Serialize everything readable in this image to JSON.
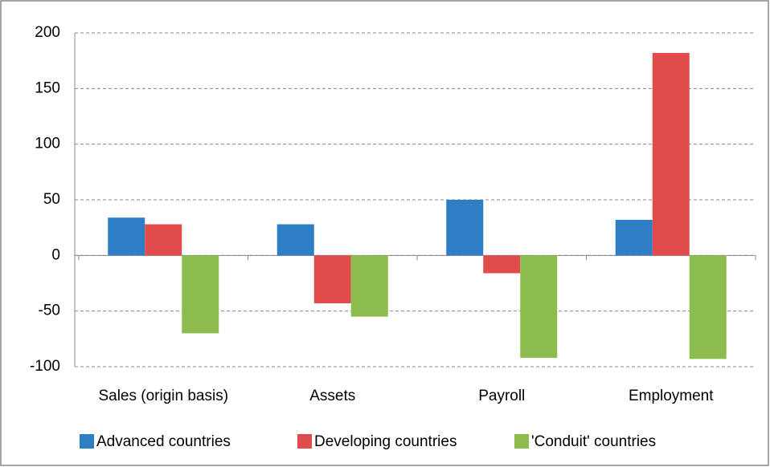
{
  "chart_data": {
    "type": "bar",
    "categories": [
      "Sales (origin basis)",
      "Assets",
      "Payroll",
      "Employment"
    ],
    "series": [
      {
        "name": "Advanced countries",
        "color": "#2e7ec6",
        "values": [
          34,
          28,
          50,
          32
        ]
      },
      {
        "name": "Developing countries",
        "color": "#e04b4b",
        "values": [
          28,
          -43,
          -16,
          182
        ]
      },
      {
        "name": "'Conduit' countries",
        "color": "#8cbb4e",
        "values": [
          -70,
          -55,
          -92,
          -93
        ]
      }
    ],
    "ylim": [
      -100,
      200
    ],
    "yticks": [
      -100,
      -50,
      0,
      50,
      100,
      150,
      200
    ],
    "grid": true,
    "legend": "bottom"
  }
}
